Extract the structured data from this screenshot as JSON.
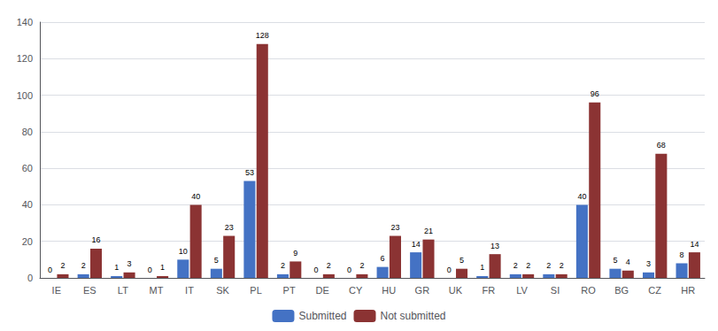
{
  "chart_data": {
    "type": "bar",
    "categories": [
      "IE",
      "ES",
      "LT",
      "MT",
      "IT",
      "SK",
      "PL",
      "PT",
      "DE",
      "CY",
      "HU",
      "GR",
      "UK",
      "FR",
      "LV",
      "SI",
      "RO",
      "BG",
      "CZ",
      "HR"
    ],
    "series": [
      {
        "name": "Submitted",
        "color": "#4472C4",
        "values": [
          0,
          2,
          1,
          0,
          10,
          5,
          53,
          2,
          0,
          0,
          6,
          14,
          0,
          1,
          2,
          2,
          40,
          5,
          3,
          8
        ]
      },
      {
        "name": "Not submitted",
        "color": "#8B3333",
        "values": [
          2,
          16,
          3,
          1,
          40,
          23,
          128,
          9,
          2,
          2,
          23,
          21,
          5,
          13,
          2,
          2,
          96,
          4,
          68,
          14
        ]
      }
    ],
    "ylim": [
      0,
      140
    ],
    "yticks": [
      0,
      20,
      40,
      60,
      80,
      100,
      120,
      140
    ],
    "grid": true,
    "legend": "bottom",
    "data_labels": true
  }
}
